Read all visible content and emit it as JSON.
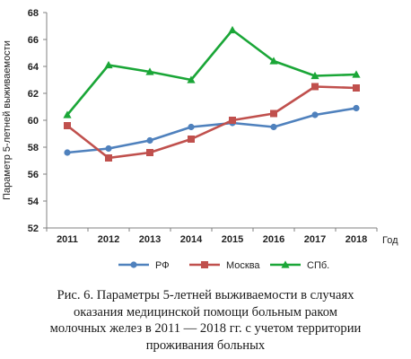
{
  "chart_data": {
    "type": "line",
    "title": "",
    "xlabel": "Год",
    "ylabel": "Параметр 5-летней выживаемости",
    "categories": [
      "2011",
      "2012",
      "2013",
      "2014",
      "2015",
      "2016",
      "2017",
      "2018"
    ],
    "ylim": [
      52,
      68
    ],
    "yticks": [
      52,
      54,
      56,
      58,
      60,
      62,
      64,
      66,
      68
    ],
    "grid": false,
    "legend_position": "bottom",
    "series": [
      {
        "name": "РФ",
        "color": "#4f81bd",
        "marker": "circle",
        "values": [
          57.6,
          57.9,
          58.5,
          59.5,
          59.8,
          59.5,
          60.4,
          60.9
        ]
      },
      {
        "name": "Москва",
        "color": "#c0504d",
        "marker": "square",
        "values": [
          59.6,
          57.2,
          57.6,
          58.6,
          60.0,
          60.5,
          62.5,
          62.4
        ]
      },
      {
        "name": "СПб.",
        "color": "#1aa637",
        "marker": "triangle",
        "values": [
          60.4,
          64.1,
          63.6,
          63.0,
          66.7,
          64.4,
          63.3,
          63.4
        ]
      }
    ]
  },
  "caption": {
    "lines": [
      "Рис. 6. Параметры 5-летней выживаемости в случаях",
      "оказания медицинской помощи больным раком",
      "молочных желез в 2011 — 2018 гг. с учетом территории",
      "проживания больных"
    ]
  }
}
